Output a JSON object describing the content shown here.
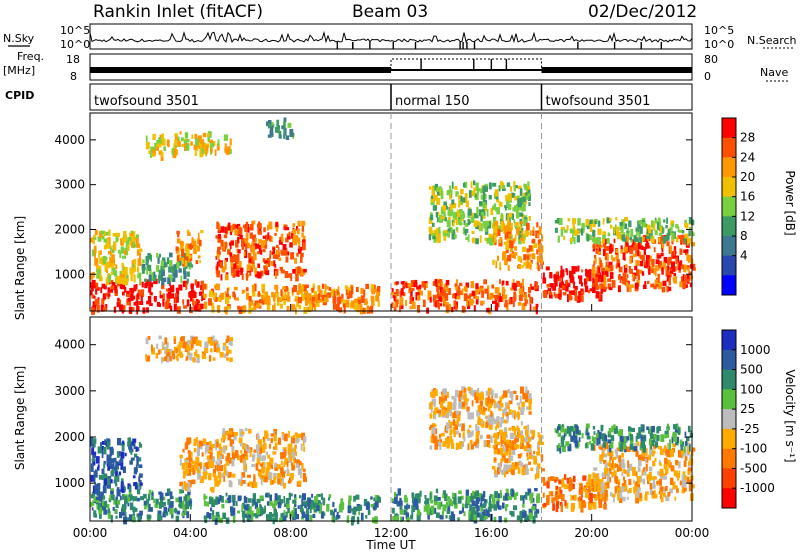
{
  "header": {
    "title": "Rankin Inlet (fitACF)",
    "beam": "Beam 03",
    "date": "02/Dec/2012"
  },
  "top_panels": {
    "left_labels": [
      "N.Sky",
      "Freq.",
      "[MHz]",
      "CPID"
    ],
    "right_labels": [
      "N.Search",
      "Nave"
    ],
    "noise_ticks_left": [
      "10^5",
      "10^0"
    ],
    "noise_ticks_right": [
      "10^5",
      "10^0"
    ],
    "freq_ticks": [
      "18",
      "8"
    ],
    "nave_ticks": [
      "80",
      "0"
    ],
    "cpid_segments": [
      {
        "label": "twofsound 3501",
        "start_hour": 0,
        "end_hour": 12
      },
      {
        "label": "normal 150",
        "start_hour": 12,
        "end_hour": 18
      },
      {
        "label": "twofsound 3501",
        "start_hour": 18,
        "end_hour": 24
      }
    ]
  },
  "chart_data": [
    {
      "type": "heatmap",
      "title": "",
      "xlabel": "",
      "ylabel": "Slant Range [km]",
      "xlim": [
        0,
        24
      ],
      "ylim": [
        180,
        4600
      ],
      "yticks": [
        1000,
        2000,
        3000,
        4000
      ],
      "colorbar": {
        "label": "Power [dB]",
        "ticks": [
          "28",
          "24",
          "20",
          "16",
          "12",
          "8",
          "4"
        ],
        "colors": [
          "#ff0000",
          "#ff5000",
          "#ff9800",
          "#f0c000",
          "#78d040",
          "#3c9a64",
          "#3c7890",
          "#2848b0",
          "#0000ff"
        ]
      },
      "regions": [
        {
          "t0": 0.0,
          "t1": 4.5,
          "r0": 250,
          "r1": 900,
          "value": "28"
        },
        {
          "t0": 0.0,
          "t1": 2.0,
          "r0": 900,
          "r1": 2000,
          "value": "16"
        },
        {
          "t0": 2.0,
          "t1": 4.0,
          "r0": 900,
          "r1": 1500,
          "value": "8"
        },
        {
          "t0": 3.4,
          "t1": 4.4,
          "r0": 1300,
          "r1": 2000,
          "value": "20"
        },
        {
          "t0": 5.0,
          "t1": 8.5,
          "r0": 1000,
          "r1": 2200,
          "value": "24"
        },
        {
          "t0": 4.5,
          "t1": 11.5,
          "r0": 250,
          "r1": 800,
          "value": "20"
        },
        {
          "t0": 2.2,
          "t1": 5.6,
          "r0": 3700,
          "r1": 4200,
          "value": "16"
        },
        {
          "t0": 7.0,
          "t1": 8.2,
          "r0": 4100,
          "r1": 4500,
          "value": "8"
        },
        {
          "t0": 12.0,
          "t1": 17.8,
          "r0": 250,
          "r1": 900,
          "value": "24"
        },
        {
          "t0": 13.5,
          "t1": 17.5,
          "r0": 1800,
          "r1": 3100,
          "value": "12"
        },
        {
          "t0": 16.0,
          "t1": 18.0,
          "r0": 1200,
          "r1": 2200,
          "value": "20"
        },
        {
          "t0": 18.0,
          "t1": 20.5,
          "r0": 500,
          "r1": 1200,
          "value": "28"
        },
        {
          "t0": 20.0,
          "t1": 24.0,
          "r0": 700,
          "r1": 1900,
          "value": "24"
        },
        {
          "t0": 18.5,
          "t1": 24.0,
          "r0": 1800,
          "r1": 2300,
          "value": "12"
        }
      ]
    },
    {
      "type": "heatmap",
      "title": "",
      "xlabel": "Time UT",
      "ylabel": "Slant Range [km]",
      "xlim": [
        0,
        24
      ],
      "ylim": [
        180,
        4600
      ],
      "yticks": [
        1000,
        2000,
        3000,
        4000
      ],
      "xticks": [
        "00:00",
        "04:00",
        "08:00",
        "12:00",
        "16:00",
        "20:00",
        "00:00"
      ],
      "colorbar": {
        "label": "Velocity [m s⁻¹]",
        "ticks": [
          "1000",
          "500",
          "100",
          "25",
          "-25",
          "-100",
          "-500",
          "-1000"
        ],
        "colors": [
          "#1c2ec0",
          "#2c5aa0",
          "#2f8a6c",
          "#58c03c",
          "#bcbcbc",
          "#ffaa00",
          "#ff7800",
          "#ff4000",
          "#ff0000"
        ]
      },
      "regions": [
        {
          "t0": 0.0,
          "t1": 4.0,
          "r0": 250,
          "r1": 900,
          "value": "100"
        },
        {
          "t0": 0.0,
          "t1": 2.0,
          "r0": 900,
          "r1": 2000,
          "value": "500"
        },
        {
          "t0": 3.5,
          "t1": 5.0,
          "r0": 900,
          "r1": 2000,
          "value": "-100"
        },
        {
          "t0": 5.0,
          "t1": 8.5,
          "r0": 1000,
          "r1": 2200,
          "value": "-100"
        },
        {
          "t0": 4.5,
          "t1": 11.5,
          "r0": 250,
          "r1": 800,
          "value": "100"
        },
        {
          "t0": 2.2,
          "t1": 5.6,
          "r0": 3700,
          "r1": 4200,
          "value": "-100"
        },
        {
          "t0": 12.0,
          "t1": 17.8,
          "r0": 250,
          "r1": 900,
          "value": "100"
        },
        {
          "t0": 13.5,
          "t1": 17.5,
          "r0": 1800,
          "r1": 3100,
          "value": "-100"
        },
        {
          "t0": 16.0,
          "t1": 18.0,
          "r0": 1200,
          "r1": 2200,
          "value": "-100"
        },
        {
          "t0": 18.0,
          "t1": 20.5,
          "r0": 500,
          "r1": 1200,
          "value": "-500"
        },
        {
          "t0": 20.0,
          "t1": 24.0,
          "r0": 700,
          "r1": 1900,
          "value": "-100"
        },
        {
          "t0": 18.5,
          "t1": 24.0,
          "r0": 1800,
          "r1": 2300,
          "value": "100"
        }
      ]
    }
  ]
}
